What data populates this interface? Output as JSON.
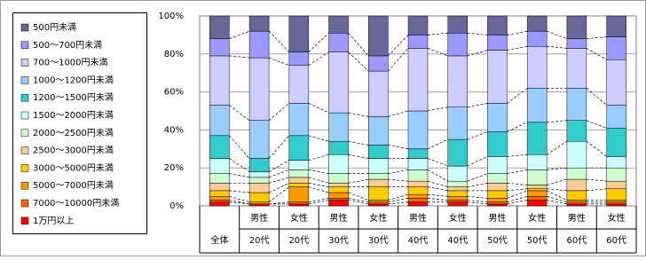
{
  "chart_data": {
    "type": "stacked_bar_100",
    "categories": [
      [
        "全体"
      ],
      [
        "男性",
        "20代"
      ],
      [
        "女性",
        "20代"
      ],
      [
        "男性",
        "30代"
      ],
      [
        "女性",
        "30代"
      ],
      [
        "男性",
        "40代"
      ],
      [
        "女性",
        "40代"
      ],
      [
        "男性",
        "50代"
      ],
      [
        "女性",
        "50代"
      ],
      [
        "男性",
        "60代"
      ],
      [
        "女性",
        "60代"
      ]
    ],
    "ylim": [
      0,
      100
    ],
    "yticks": [
      {
        "value": 0,
        "label": "0%"
      },
      {
        "value": 20,
        "label": "20%"
      },
      {
        "value": 40,
        "label": "40%"
      },
      {
        "value": 60,
        "label": "60%"
      },
      {
        "value": 80,
        "label": "80%"
      },
      {
        "value": 100,
        "label": "100%"
      }
    ],
    "grid": true,
    "legend": "left",
    "series": [
      {
        "name": "1万円以上",
        "color": "#FF0000",
        "values": [
          2,
          1,
          1,
          3,
          1,
          2,
          2,
          1,
          3,
          1,
          1
        ]
      },
      {
        "name": "7000～10000円未満",
        "color": "#FF6600",
        "values": [
          1,
          0,
          1,
          1,
          1,
          2,
          1,
          1,
          2,
          1,
          1
        ]
      },
      {
        "name": "5000～7000円未満",
        "color": "#FF9900",
        "values": [
          2,
          1,
          8,
          3,
          1,
          2,
          2,
          2,
          3,
          1,
          1
        ]
      },
      {
        "name": "3000～5000円未満",
        "color": "#FFCC00",
        "values": [
          3,
          5,
          2,
          3,
          7,
          4,
          3,
          4,
          1,
          5,
          6
        ]
      },
      {
        "name": "2500～3000円未満",
        "color": "#FFCC99",
        "values": [
          4,
          5,
          3,
          2,
          4,
          3,
          2,
          4,
          2,
          6,
          4
        ]
      },
      {
        "name": "2000～2500円未満",
        "color": "#CCFFCC",
        "values": [
          5,
          3,
          4,
          5,
          3,
          6,
          3,
          5,
          8,
          6,
          7
        ]
      },
      {
        "name": "1500～2000円未満",
        "color": "#CCFFFF",
        "values": [
          8,
          3,
          5,
          10,
          8,
          6,
          8,
          9,
          8,
          14,
          6
        ]
      },
      {
        "name": "1200～1500円未満",
        "color": "#33CCCC",
        "values": [
          12,
          7,
          13,
          7,
          7,
          5,
          14,
          13,
          17,
          11,
          15
        ]
      },
      {
        "name": "1000～1200円未満",
        "color": "#99CCFF",
        "values": [
          16,
          20,
          17,
          15,
          15,
          20,
          17,
          15,
          18,
          17,
          12
        ]
      },
      {
        "name": "700～1000円未満",
        "color": "#CCCCFF",
        "values": [
          26,
          33,
          20,
          32,
          24,
          33,
          27,
          28,
          22,
          21,
          24
        ]
      },
      {
        "name": "500～700円未満",
        "color": "#9999FF",
        "values": [
          9,
          14,
          7,
          10,
          8,
          7,
          12,
          8,
          8,
          5,
          12
        ]
      },
      {
        "name": "500円未満",
        "color": "#666699",
        "values": [
          12,
          8,
          19,
          9,
          21,
          10,
          9,
          10,
          8,
          12,
          11
        ]
      }
    ]
  }
}
